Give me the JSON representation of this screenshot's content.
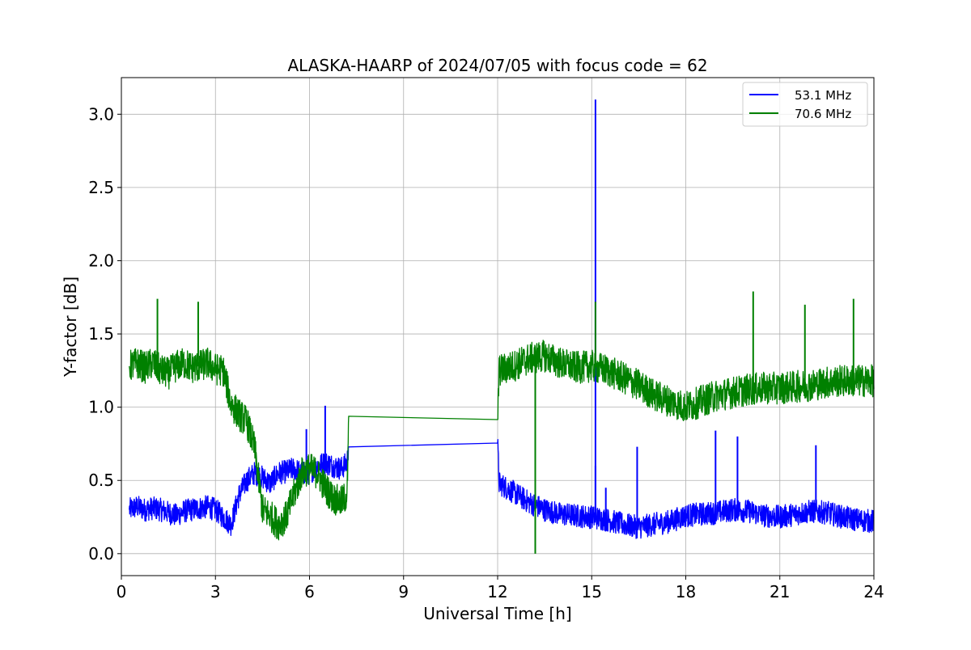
{
  "chart_data": {
    "type": "line",
    "title": "ALASKA-HAARP of 2024/07/05 with focus code = 62",
    "xlabel": "Universal Time [h]",
    "ylabel": "Y-factor [dB]",
    "xlim": [
      0,
      24
    ],
    "ylim": [
      -0.15,
      3.25
    ],
    "xticks": [
      0,
      3,
      6,
      9,
      12,
      15,
      18,
      21,
      24
    ],
    "yticks": [
      0.0,
      0.5,
      1.0,
      1.5,
      2.0,
      2.5,
      3.0
    ],
    "xtick_labels": [
      "0",
      "3",
      "6",
      "9",
      "12",
      "15",
      "18",
      "21",
      "24"
    ],
    "ytick_labels": [
      "0.0",
      "0.5",
      "1.0",
      "1.5",
      "2.0",
      "2.5",
      "3.0"
    ],
    "grid": true,
    "legend_position": "top-right",
    "series": [
      {
        "name": "53.1 MHz",
        "color": "#0000ff",
        "points": [
          [
            0.25,
            0.3
          ],
          [
            0.5,
            0.32
          ],
          [
            0.75,
            0.3
          ],
          [
            1.0,
            0.31
          ],
          [
            1.25,
            0.3
          ],
          [
            1.5,
            0.28
          ],
          [
            1.75,
            0.26
          ],
          [
            2.0,
            0.29
          ],
          [
            2.25,
            0.3
          ],
          [
            2.5,
            0.31
          ],
          [
            2.75,
            0.32
          ],
          [
            3.0,
            0.3
          ],
          [
            3.25,
            0.25
          ],
          [
            3.5,
            0.2
          ],
          [
            3.75,
            0.4
          ],
          [
            4.0,
            0.5
          ],
          [
            4.25,
            0.55
          ],
          [
            4.5,
            0.52
          ],
          [
            4.75,
            0.48
          ],
          [
            5.0,
            0.55
          ],
          [
            5.25,
            0.56
          ],
          [
            5.5,
            0.58
          ],
          [
            5.75,
            0.55
          ],
          [
            6.0,
            0.55
          ],
          [
            6.25,
            0.6
          ],
          [
            6.5,
            0.62
          ],
          [
            6.75,
            0.6
          ],
          [
            7.0,
            0.58
          ],
          [
            7.2,
            0.62
          ],
          [
            7.25,
            0.76
          ],
          [
            12.0,
            0.755
          ],
          [
            12.05,
            0.48
          ],
          [
            12.5,
            0.42
          ],
          [
            13.0,
            0.35
          ],
          [
            13.5,
            0.3
          ],
          [
            14.0,
            0.27
          ],
          [
            14.5,
            0.26
          ],
          [
            15.0,
            0.25
          ],
          [
            15.5,
            0.23
          ],
          [
            16.0,
            0.2
          ],
          [
            16.5,
            0.18
          ],
          [
            17.0,
            0.2
          ],
          [
            17.5,
            0.22
          ],
          [
            18.0,
            0.26
          ],
          [
            18.5,
            0.27
          ],
          [
            19.0,
            0.28
          ],
          [
            19.5,
            0.3
          ],
          [
            20.0,
            0.29
          ],
          [
            20.5,
            0.26
          ],
          [
            21.0,
            0.25
          ],
          [
            21.5,
            0.27
          ],
          [
            22.0,
            0.29
          ],
          [
            22.5,
            0.28
          ],
          [
            23.0,
            0.25
          ],
          [
            23.5,
            0.23
          ],
          [
            24.0,
            0.22
          ]
        ],
        "noise": 0.08,
        "spikes": [
          [
            5.9,
            0.85
          ],
          [
            6.5,
            1.01
          ],
          [
            15.12,
            3.1
          ],
          [
            15.12,
            0.6
          ],
          [
            15.45,
            0.45
          ],
          [
            16.45,
            0.73
          ],
          [
            18.95,
            0.84
          ],
          [
            19.65,
            0.8
          ],
          [
            22.15,
            0.74
          ]
        ]
      },
      {
        "name": "70.6 MHz",
        "color": "#008000",
        "points": [
          [
            0.25,
            1.28
          ],
          [
            0.5,
            1.3
          ],
          [
            0.75,
            1.27
          ],
          [
            1.0,
            1.3
          ],
          [
            1.25,
            1.25
          ],
          [
            1.5,
            1.23
          ],
          [
            1.75,
            1.28
          ],
          [
            2.0,
            1.3
          ],
          [
            2.25,
            1.27
          ],
          [
            2.5,
            1.28
          ],
          [
            2.75,
            1.3
          ],
          [
            3.0,
            1.26
          ],
          [
            3.25,
            1.25
          ],
          [
            3.5,
            1.02
          ],
          [
            3.75,
            0.95
          ],
          [
            4.0,
            0.9
          ],
          [
            4.25,
            0.72
          ],
          [
            4.5,
            0.3
          ],
          [
            4.75,
            0.26
          ],
          [
            5.0,
            0.2
          ],
          [
            5.25,
            0.25
          ],
          [
            5.5,
            0.4
          ],
          [
            5.75,
            0.55
          ],
          [
            6.0,
            0.58
          ],
          [
            6.25,
            0.55
          ],
          [
            6.5,
            0.45
          ],
          [
            6.75,
            0.38
          ],
          [
            7.0,
            0.35
          ],
          [
            7.2,
            0.4
          ],
          [
            7.25,
            0.885
          ],
          [
            12.0,
            0.915
          ],
          [
            12.05,
            1.25
          ],
          [
            12.5,
            1.28
          ],
          [
            13.0,
            1.33
          ],
          [
            13.5,
            1.35
          ],
          [
            14.0,
            1.3
          ],
          [
            14.5,
            1.27
          ],
          [
            15.0,
            1.28
          ],
          [
            15.5,
            1.25
          ],
          [
            16.0,
            1.2
          ],
          [
            16.5,
            1.15
          ],
          [
            17.0,
            1.08
          ],
          [
            17.5,
            1.04
          ],
          [
            18.0,
            1.0
          ],
          [
            18.5,
            1.04
          ],
          [
            19.0,
            1.08
          ],
          [
            19.5,
            1.1
          ],
          [
            20.0,
            1.12
          ],
          [
            20.5,
            1.13
          ],
          [
            21.0,
            1.13
          ],
          [
            21.5,
            1.14
          ],
          [
            22.0,
            1.15
          ],
          [
            22.5,
            1.17
          ],
          [
            23.0,
            1.18
          ],
          [
            23.5,
            1.18
          ],
          [
            24.0,
            1.18
          ]
        ],
        "noise": 0.11,
        "spikes": [
          [
            1.15,
            1.74
          ],
          [
            2.45,
            1.72
          ],
          [
            13.2,
            0.0
          ],
          [
            15.12,
            1.72
          ],
          [
            20.15,
            1.79
          ],
          [
            21.8,
            1.7
          ],
          [
            23.35,
            1.74
          ]
        ]
      }
    ]
  }
}
